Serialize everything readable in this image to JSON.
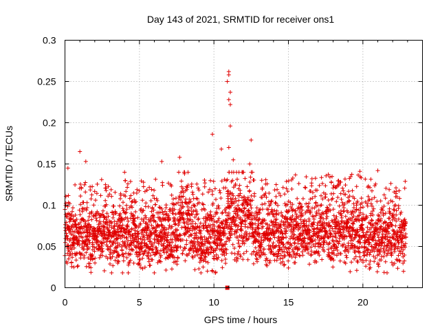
{
  "chart_data": {
    "type": "scatter",
    "title": "Day 143 of 2021, SRMTID for receiver ons1",
    "xlabel": "GPS time / hours",
    "ylabel": "SRMTID / TECUs",
    "xlim": [
      0,
      24
    ],
    "ylim": [
      0,
      0.3
    ],
    "xticks": [
      0,
      5,
      10,
      15,
      20
    ],
    "xtick_labels": [
      "0",
      "5",
      "10",
      "15",
      "20"
    ],
    "yticks": [
      0,
      0.05,
      0.1,
      0.15,
      0.2,
      0.25,
      0.3
    ],
    "ytick_labels": [
      "0",
      "0.05",
      "0.1",
      "0.15",
      "0.2",
      "0.25",
      "0.3"
    ],
    "grid": true,
    "marker": "plus",
    "color": "#e00000",
    "data_range_hours": [
      0,
      22.9
    ],
    "series": [
      {
        "name": "SRMTID",
        "summary": "dense scatter; bulk of points between 0.02 and 0.10 TECU, baseline ~0.06",
        "highlights": [
          {
            "x": 0.2,
            "y": 0.145
          },
          {
            "x": 1.0,
            "y": 0.165
          },
          {
            "x": 1.4,
            "y": 0.153
          },
          {
            "x": 4.0,
            "y": 0.14
          },
          {
            "x": 6.5,
            "y": 0.153
          },
          {
            "x": 7.7,
            "y": 0.158
          },
          {
            "x": 9.9,
            "y": 0.186
          },
          {
            "x": 10.5,
            "y": 0.168
          },
          {
            "x": 11.0,
            "y": 0.262
          },
          {
            "x": 11.0,
            "y": 0.258
          },
          {
            "x": 10.9,
            "y": 0.25
          },
          {
            "x": 11.1,
            "y": 0.237
          },
          {
            "x": 11.0,
            "y": 0.228
          },
          {
            "x": 11.1,
            "y": 0.222
          },
          {
            "x": 11.1,
            "y": 0.196
          },
          {
            "x": 11.0,
            "y": 0.17
          },
          {
            "x": 11.3,
            "y": 0.155
          },
          {
            "x": 12.5,
            "y": 0.179
          },
          {
            "x": 12.4,
            "y": 0.15
          },
          {
            "x": 19.8,
            "y": 0.141
          },
          {
            "x": 21.0,
            "y": 0.142
          },
          {
            "x": 11.6,
            "y": 0.035
          },
          {
            "x": 9.9,
            "y": 0.02
          },
          {
            "x": 10.1,
            "y": 0.018
          },
          {
            "x": 0.6,
            "y": 0.025
          },
          {
            "x": 15.0,
            "y": 0.024
          }
        ]
      },
      {
        "name": "zero marker",
        "points": [
          {
            "x": 10.9,
            "y": 0.0
          }
        ]
      }
    ]
  }
}
